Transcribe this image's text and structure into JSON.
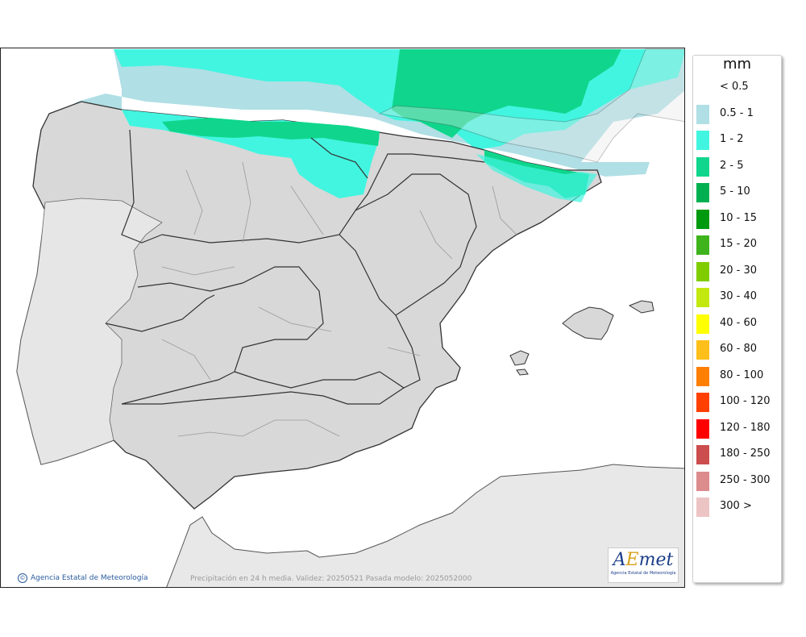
{
  "map": {
    "region": "Iberian Peninsula and Balearic Islands",
    "colors": {
      "sea": "#ffffff",
      "land": "#d8d8d8",
      "africa": "#e8e8e8",
      "border": "#333333",
      "province_border": "#9a9a9a"
    }
  },
  "legend": {
    "title": "mm",
    "items": [
      {
        "label": "< 0.5",
        "color": ""
      },
      {
        "label": "0.5 - 1",
        "color": "#b0dfe5"
      },
      {
        "label": "1 - 2",
        "color": "#42f5e0"
      },
      {
        "label": "2 - 5",
        "color": "#0fd68c"
      },
      {
        "label": "5 - 10",
        "color": "#00b050"
      },
      {
        "label": "10 - 15",
        "color": "#009a0f"
      },
      {
        "label": "15 - 20",
        "color": "#3fb31c"
      },
      {
        "label": "20 - 30",
        "color": "#7fcc00"
      },
      {
        "label": "30 - 40",
        "color": "#c2e80f"
      },
      {
        "label": "40 - 60",
        "color": "#ffff00"
      },
      {
        "label": "60 - 80",
        "color": "#ffbf1a"
      },
      {
        "label": "80 - 100",
        "color": "#ff7f00"
      },
      {
        "label": "100 - 120",
        "color": "#ff4000"
      },
      {
        "label": "120 - 180",
        "color": "#ff0000"
      },
      {
        "label": "180 - 250",
        "color": "#cc4d4d"
      },
      {
        "label": "250 - 300",
        "color": "#dc8c8c"
      },
      {
        "label": "300 >",
        "color": "#edc4c4"
      }
    ]
  },
  "footer": {
    "copyright": "Agencia Estatal de Meteorología",
    "caption": "Precipitación en 24 h media. Validez: 20250521 Pasada modelo: 2025052000"
  },
  "logo": {
    "word_a": "A",
    "word_e": "E",
    "word_rest": "met",
    "subtitle": "Agencia Estatal de Meteorología"
  }
}
